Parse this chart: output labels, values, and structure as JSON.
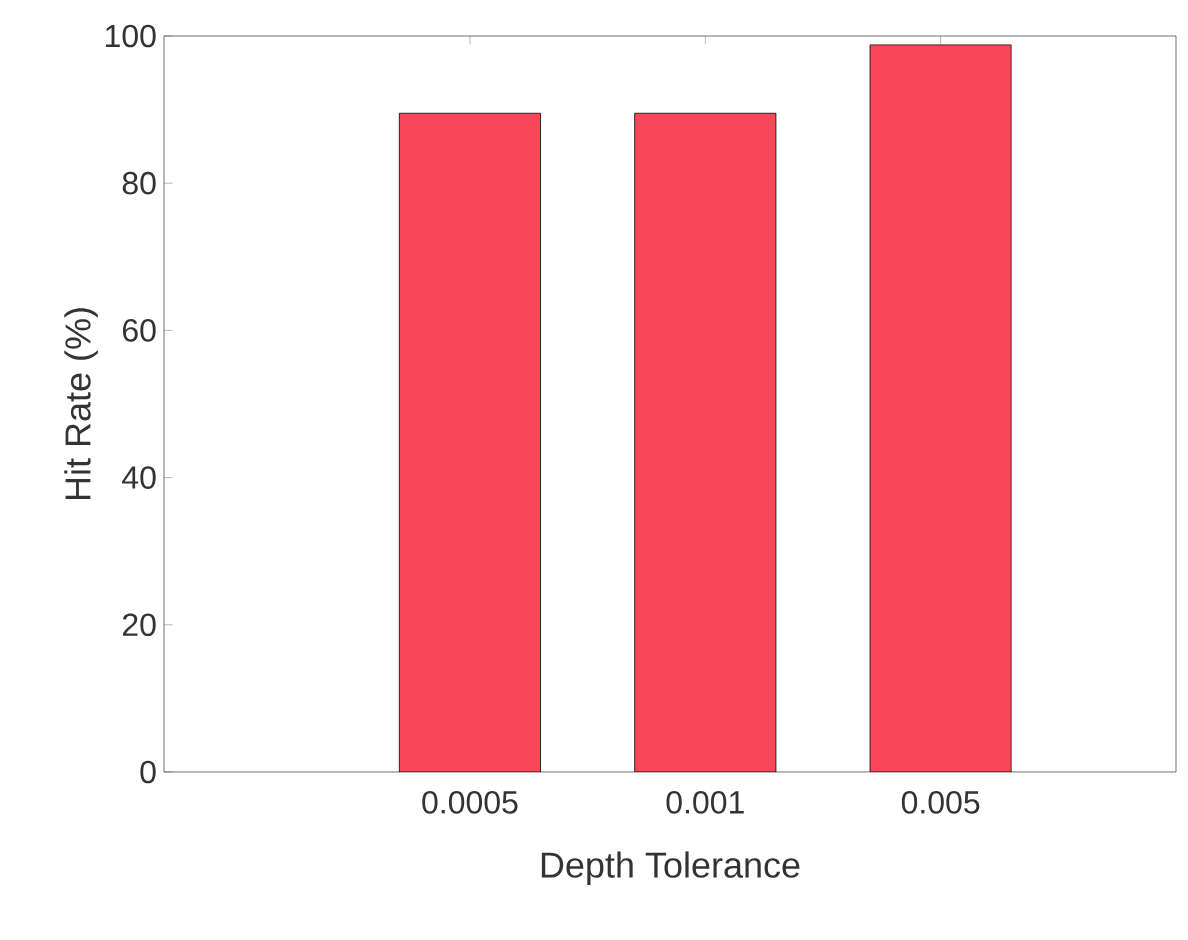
{
  "chart_data": {
    "type": "bar",
    "xlabel": "Depth Tolerance",
    "ylabel": "Hit Rate (%)",
    "categories": [
      "0.0005",
      "0.001",
      "0.005"
    ],
    "values": [
      89.5,
      89.5,
      98.8
    ],
    "color": "#fa4659",
    "ylim": [
      0,
      100
    ],
    "yticks": [
      0,
      20,
      40,
      60,
      80,
      100
    ],
    "grid": false
  }
}
